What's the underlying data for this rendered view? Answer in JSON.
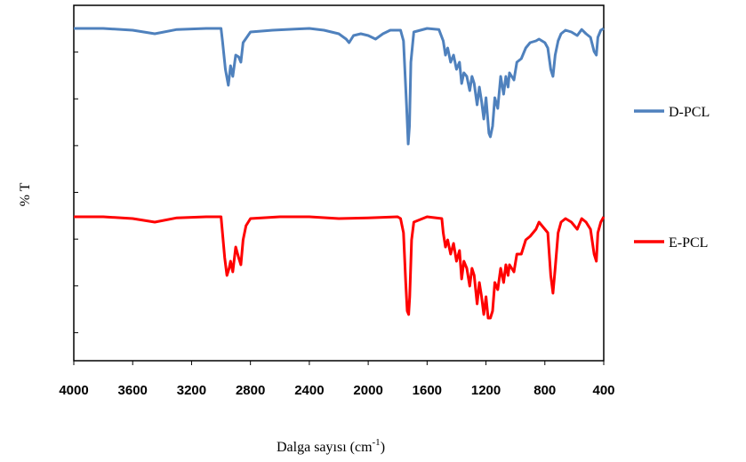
{
  "chart_data": {
    "type": "line",
    "xlabel": "Dalga sayısı (cm-1)",
    "xlabel_main": "Dalga sayısı (cm",
    "xlabel_sup": "-1",
    "xlabel_close": ")",
    "ylabel": "% T",
    "xlim": [
      4000,
      400
    ],
    "x_reversed": true,
    "ylim": [
      0,
      1.0
    ],
    "x_ticks": [
      "4000",
      "3600",
      "3200",
      "2800",
      "2400",
      "2000",
      "1600",
      "1200",
      "800",
      "400"
    ],
    "y_tick_count": 7,
    "y_ticks_labeled": false,
    "grid": false,
    "legend_placement": "right",
    "series": [
      {
        "name": "D-PCL",
        "color": "#4f81bd",
        "points": [
          [
            4000,
            0.935
          ],
          [
            3800,
            0.935
          ],
          [
            3600,
            0.93
          ],
          [
            3450,
            0.92
          ],
          [
            3300,
            0.932
          ],
          [
            3100,
            0.935
          ],
          [
            3000,
            0.935
          ],
          [
            2990,
            0.9
          ],
          [
            2970,
            0.82
          ],
          [
            2950,
            0.775
          ],
          [
            2935,
            0.83
          ],
          [
            2920,
            0.8
          ],
          [
            2900,
            0.86
          ],
          [
            2880,
            0.855
          ],
          [
            2865,
            0.84
          ],
          [
            2850,
            0.895
          ],
          [
            2800,
            0.925
          ],
          [
            2650,
            0.93
          ],
          [
            2500,
            0.933
          ],
          [
            2400,
            0.935
          ],
          [
            2300,
            0.93
          ],
          [
            2200,
            0.92
          ],
          [
            2150,
            0.905
          ],
          [
            2130,
            0.895
          ],
          [
            2100,
            0.915
          ],
          [
            2050,
            0.92
          ],
          [
            2000,
            0.915
          ],
          [
            1950,
            0.905
          ],
          [
            1900,
            0.92
          ],
          [
            1850,
            0.93
          ],
          [
            1780,
            0.93
          ],
          [
            1760,
            0.9
          ],
          [
            1740,
            0.72
          ],
          [
            1728,
            0.61
          ],
          [
            1720,
            0.66
          ],
          [
            1710,
            0.84
          ],
          [
            1690,
            0.925
          ],
          [
            1600,
            0.935
          ],
          [
            1520,
            0.932
          ],
          [
            1490,
            0.9
          ],
          [
            1475,
            0.86
          ],
          [
            1460,
            0.88
          ],
          [
            1440,
            0.84
          ],
          [
            1420,
            0.86
          ],
          [
            1400,
            0.82
          ],
          [
            1380,
            0.84
          ],
          [
            1365,
            0.78
          ],
          [
            1350,
            0.81
          ],
          [
            1330,
            0.8
          ],
          [
            1310,
            0.76
          ],
          [
            1295,
            0.8
          ],
          [
            1280,
            0.78
          ],
          [
            1260,
            0.72
          ],
          [
            1245,
            0.77
          ],
          [
            1230,
            0.73
          ],
          [
            1215,
            0.68
          ],
          [
            1200,
            0.74
          ],
          [
            1180,
            0.64
          ],
          [
            1170,
            0.63
          ],
          [
            1155,
            0.66
          ],
          [
            1140,
            0.74
          ],
          [
            1120,
            0.71
          ],
          [
            1100,
            0.8
          ],
          [
            1080,
            0.75
          ],
          [
            1065,
            0.8
          ],
          [
            1050,
            0.77
          ],
          [
            1040,
            0.81
          ],
          [
            1010,
            0.79
          ],
          [
            990,
            0.84
          ],
          [
            960,
            0.85
          ],
          [
            930,
            0.88
          ],
          [
            900,
            0.895
          ],
          [
            860,
            0.9
          ],
          [
            840,
            0.905
          ],
          [
            820,
            0.9
          ],
          [
            800,
            0.895
          ],
          [
            780,
            0.88
          ],
          [
            760,
            0.82
          ],
          [
            745,
            0.8
          ],
          [
            730,
            0.86
          ],
          [
            710,
            0.9
          ],
          [
            690,
            0.92
          ],
          [
            660,
            0.93
          ],
          [
            620,
            0.925
          ],
          [
            580,
            0.915
          ],
          [
            550,
            0.932
          ],
          [
            520,
            0.92
          ],
          [
            490,
            0.91
          ],
          [
            465,
            0.87
          ],
          [
            450,
            0.86
          ],
          [
            440,
            0.91
          ],
          [
            420,
            0.93
          ],
          [
            400,
            0.935
          ]
        ]
      },
      {
        "name": "E-PCL",
        "color": "#ff0000",
        "points": [
          [
            4000,
            0.405
          ],
          [
            3800,
            0.405
          ],
          [
            3600,
            0.4
          ],
          [
            3450,
            0.39
          ],
          [
            3300,
            0.402
          ],
          [
            3100,
            0.405
          ],
          [
            3000,
            0.405
          ],
          [
            2990,
            0.36
          ],
          [
            2975,
            0.29
          ],
          [
            2960,
            0.24
          ],
          [
            2945,
            0.26
          ],
          [
            2935,
            0.28
          ],
          [
            2920,
            0.25
          ],
          [
            2900,
            0.32
          ],
          [
            2880,
            0.29
          ],
          [
            2865,
            0.27
          ],
          [
            2850,
            0.34
          ],
          [
            2830,
            0.38
          ],
          [
            2800,
            0.4
          ],
          [
            2600,
            0.405
          ],
          [
            2400,
            0.405
          ],
          [
            2200,
            0.4
          ],
          [
            2000,
            0.402
          ],
          [
            1800,
            0.405
          ],
          [
            1780,
            0.4
          ],
          [
            1760,
            0.36
          ],
          [
            1745,
            0.22
          ],
          [
            1735,
            0.14
          ],
          [
            1725,
            0.13
          ],
          [
            1718,
            0.18
          ],
          [
            1705,
            0.34
          ],
          [
            1690,
            0.39
          ],
          [
            1600,
            0.405
          ],
          [
            1500,
            0.4
          ],
          [
            1490,
            0.36
          ],
          [
            1475,
            0.32
          ],
          [
            1460,
            0.34
          ],
          [
            1440,
            0.3
          ],
          [
            1420,
            0.33
          ],
          [
            1400,
            0.28
          ],
          [
            1380,
            0.31
          ],
          [
            1365,
            0.23
          ],
          [
            1350,
            0.28
          ],
          [
            1330,
            0.26
          ],
          [
            1310,
            0.21
          ],
          [
            1295,
            0.26
          ],
          [
            1280,
            0.24
          ],
          [
            1260,
            0.16
          ],
          [
            1245,
            0.22
          ],
          [
            1230,
            0.18
          ],
          [
            1215,
            0.13
          ],
          [
            1200,
            0.18
          ],
          [
            1185,
            0.12
          ],
          [
            1170,
            0.12
          ],
          [
            1155,
            0.14
          ],
          [
            1140,
            0.22
          ],
          [
            1120,
            0.2
          ],
          [
            1100,
            0.26
          ],
          [
            1080,
            0.22
          ],
          [
            1065,
            0.27
          ],
          [
            1050,
            0.24
          ],
          [
            1040,
            0.27
          ],
          [
            1010,
            0.25
          ],
          [
            990,
            0.3
          ],
          [
            960,
            0.3
          ],
          [
            930,
            0.34
          ],
          [
            900,
            0.35
          ],
          [
            860,
            0.37
          ],
          [
            840,
            0.39
          ],
          [
            820,
            0.38
          ],
          [
            800,
            0.37
          ],
          [
            780,
            0.36
          ],
          [
            760,
            0.24
          ],
          [
            745,
            0.19
          ],
          [
            730,
            0.26
          ],
          [
            710,
            0.36
          ],
          [
            690,
            0.39
          ],
          [
            660,
            0.4
          ],
          [
            620,
            0.39
          ],
          [
            580,
            0.37
          ],
          [
            550,
            0.4
          ],
          [
            520,
            0.39
          ],
          [
            490,
            0.37
          ],
          [
            465,
            0.3
          ],
          [
            450,
            0.28
          ],
          [
            440,
            0.36
          ],
          [
            420,
            0.39
          ],
          [
            400,
            0.405
          ]
        ]
      }
    ]
  }
}
